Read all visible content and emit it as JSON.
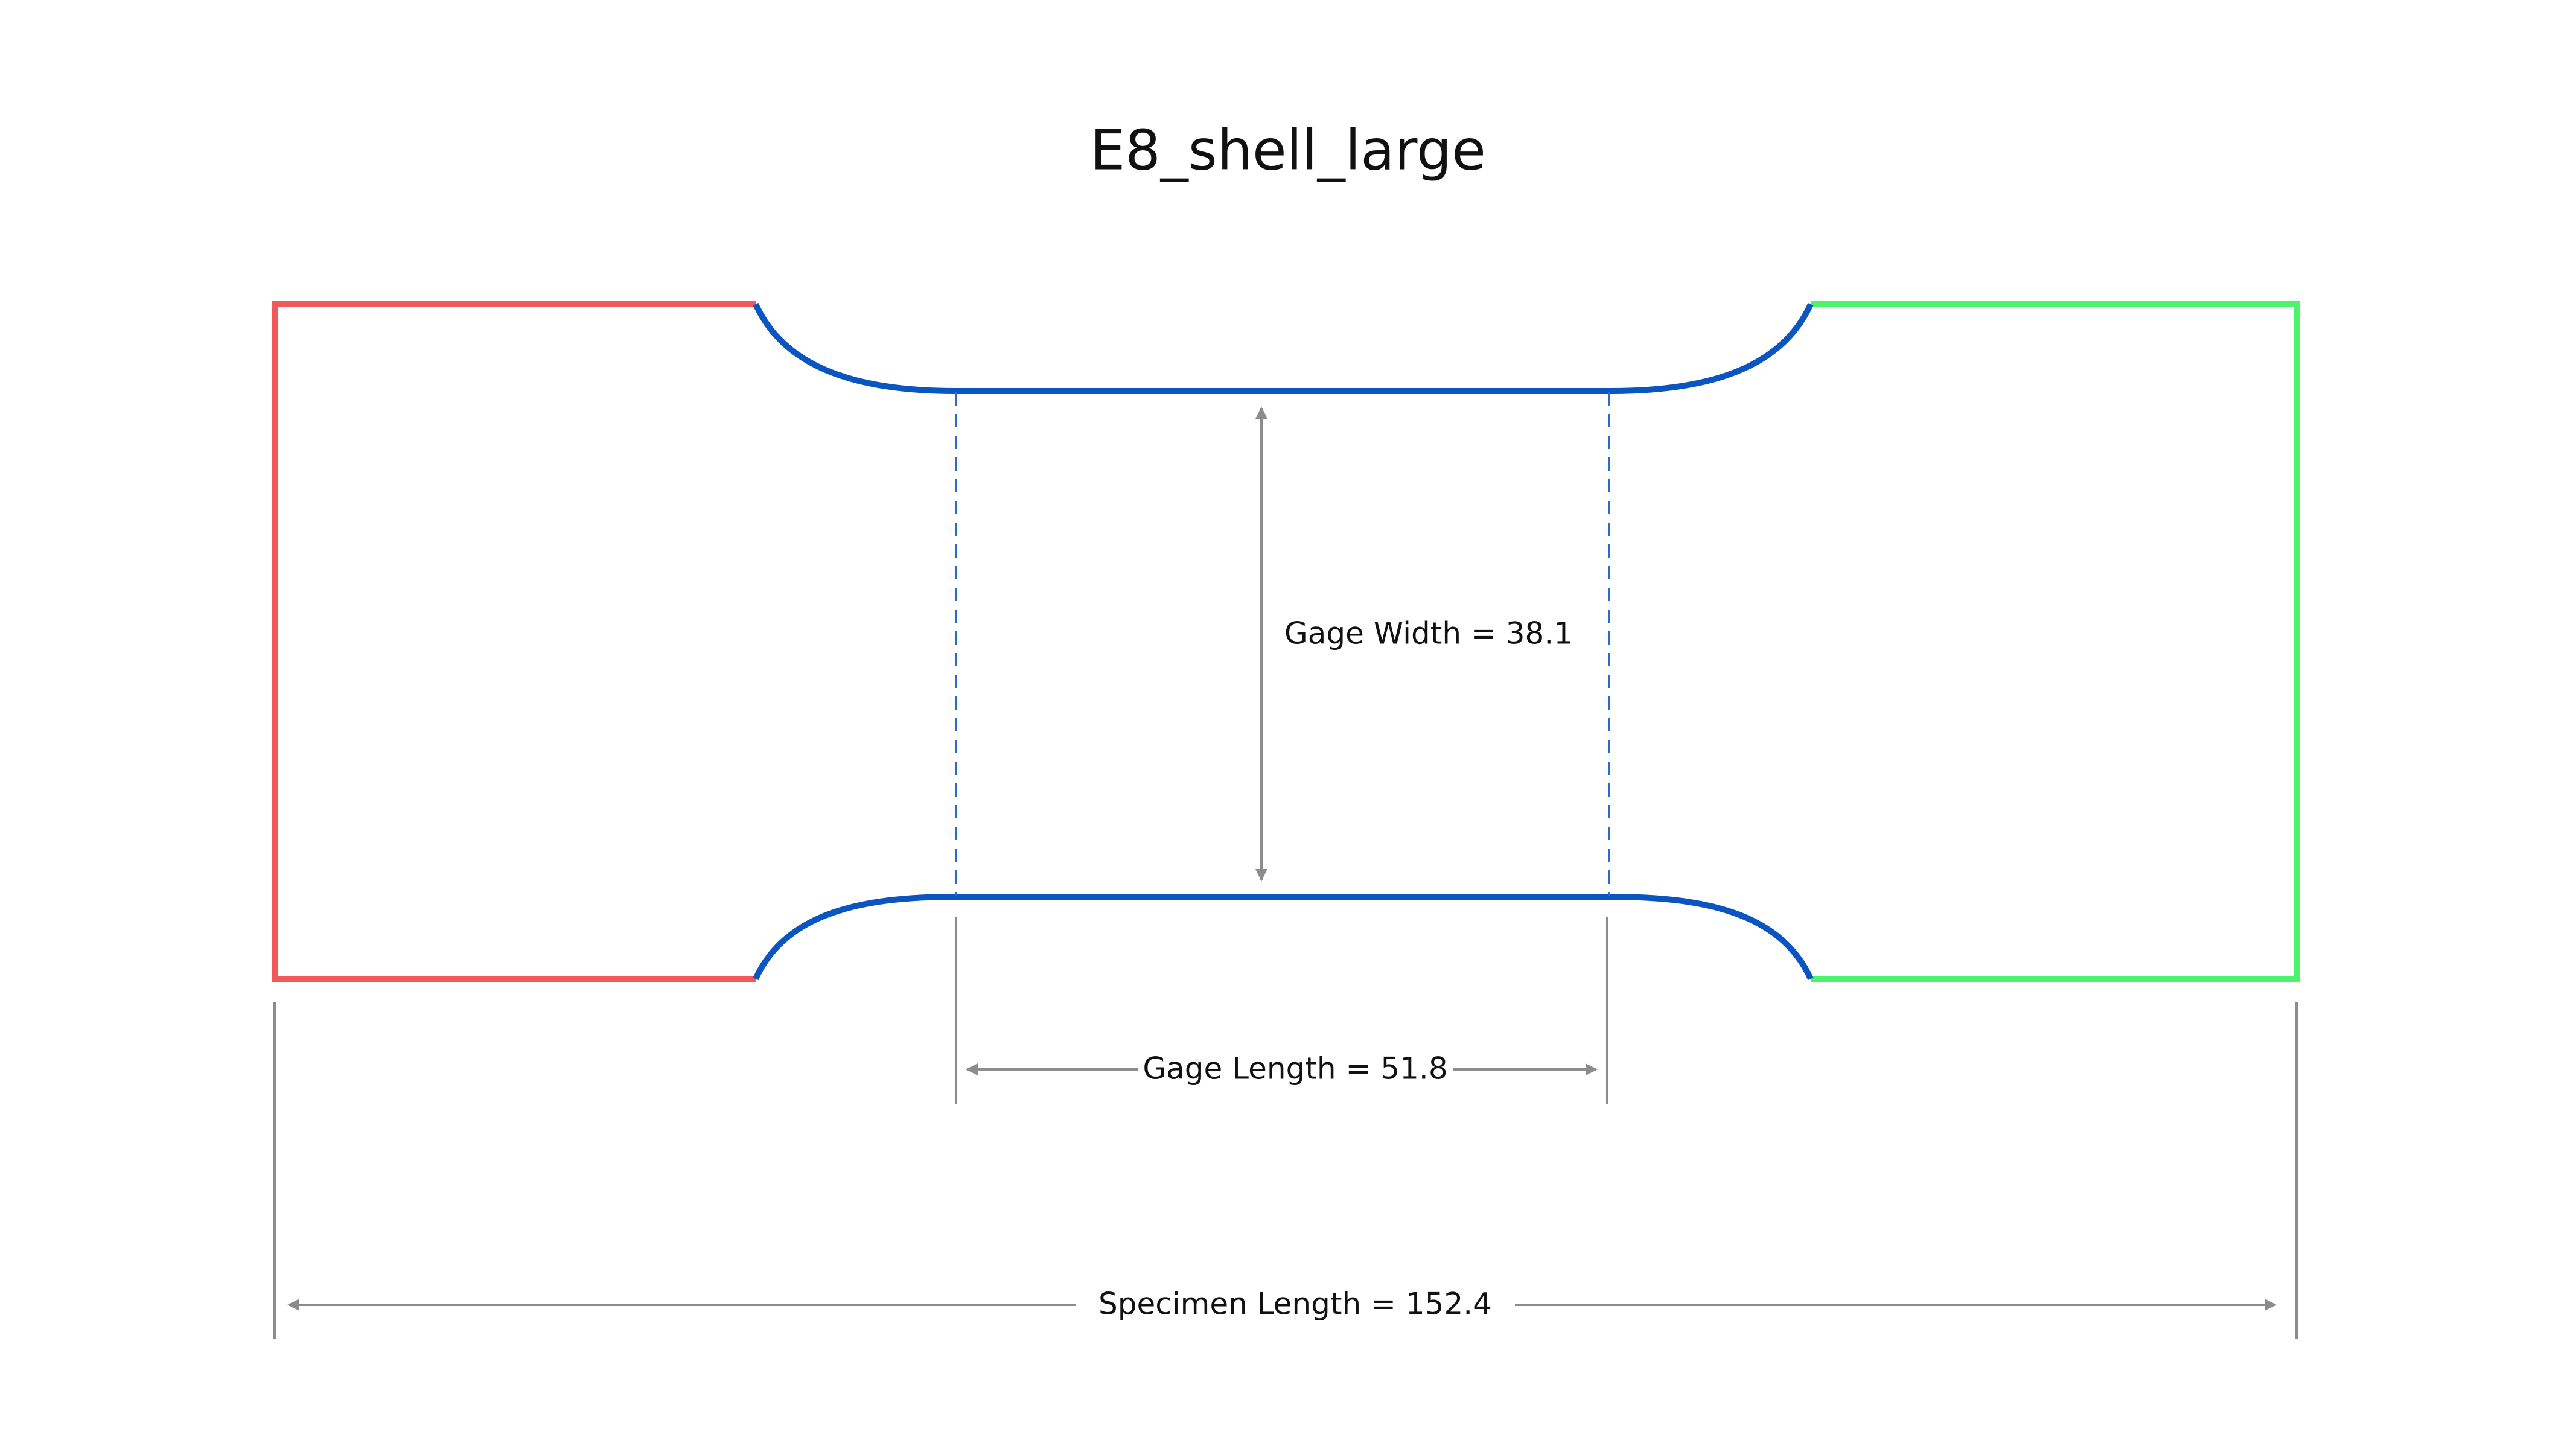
{
  "title": "E8_shell_large",
  "dimensions": {
    "gage_width": "Gage Width = 38.1",
    "gage_length": "Gage Length = 51.8",
    "specimen_length": "Specimen Length = 152.4"
  }
}
